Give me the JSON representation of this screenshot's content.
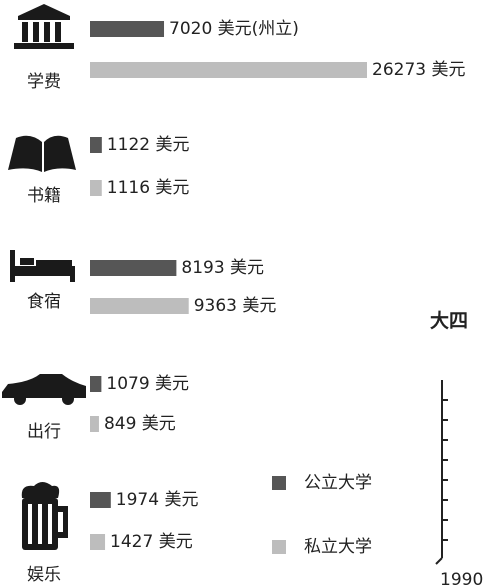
{
  "chart_data": {
    "type": "bar",
    "categories": [
      "学费",
      "书籍",
      "食宿",
      "出行",
      "娱乐"
    ],
    "series": [
      {
        "name": "公立大学",
        "color": "#565656",
        "values": [
          7020,
          1122,
          8193,
          1079,
          1974
        ],
        "value_labels": [
          "7020 美元(州立)",
          "1122 美元",
          "8193 美元",
          "1079 美元",
          "1974 美元"
        ]
      },
      {
        "name": "私立大学",
        "color": "#bdbdbd",
        "values": [
          26273,
          1116,
          9363,
          849,
          1427
        ],
        "value_labels": [
          "26273 美元",
          "1116 美元",
          "9363 美元",
          "849 美元",
          "1427 美元"
        ]
      }
    ],
    "side_title": "大四",
    "side_axis_label": "1990"
  }
}
